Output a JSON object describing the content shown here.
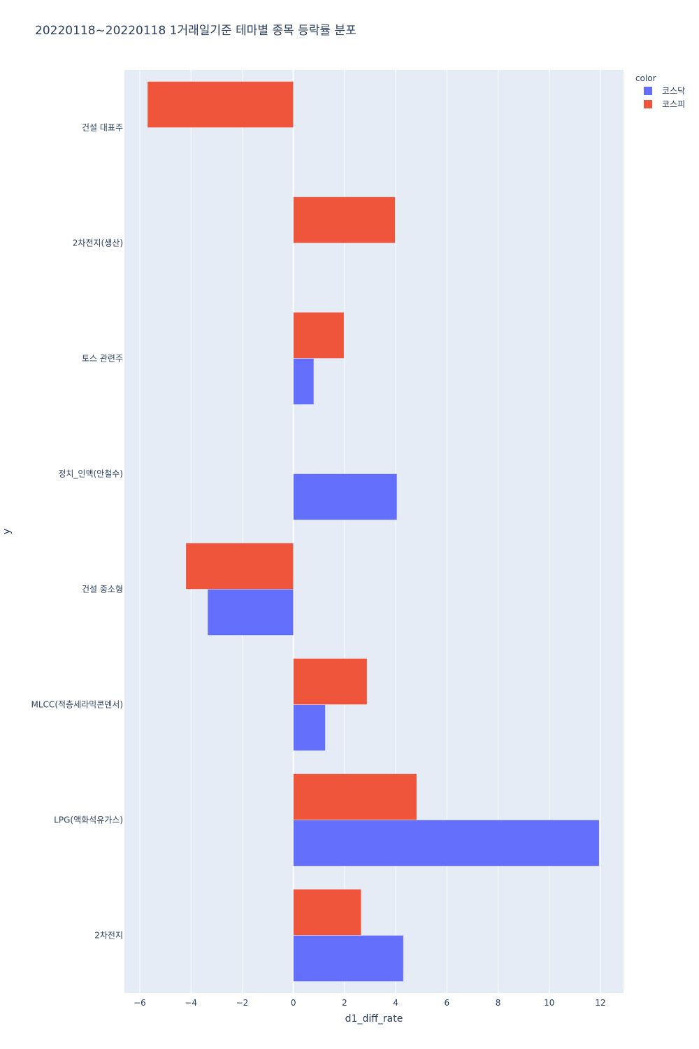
{
  "chart_data": {
    "type": "bar",
    "orientation": "horizontal",
    "barmode": "group",
    "title": "20220118~20220118 1거래일기준 테마별 종목 등락률 분포",
    "xlabel": "d1_diff_rate",
    "ylabel": "y",
    "xlim": [
      -6.6,
      12.9
    ],
    "xticks": [
      -6,
      -4,
      -2,
      0,
      2,
      4,
      6,
      8,
      10,
      12
    ],
    "xtick_labels": [
      "−6",
      "−4",
      "−2",
      "0",
      "2",
      "4",
      "6",
      "8",
      "10",
      "12"
    ],
    "grid": true,
    "legend": {
      "title": "color",
      "placement": "top-right"
    },
    "categories": [
      "건설 대표주",
      "2차전지(생산)",
      "토스 관련주",
      "정치_인맥(안철수)",
      "건설 중소형",
      "MLCC(적층세라믹콘덴서)",
      "LPG(액화석유가스)",
      "2차전지"
    ],
    "series": [
      {
        "name": "코스닥",
        "color": "#636efa",
        "values": [
          null,
          null,
          0.8,
          4.05,
          -3.35,
          1.25,
          11.95,
          4.3
        ]
      },
      {
        "name": "코스피",
        "color": "#ef553b",
        "values": [
          -5.7,
          3.98,
          1.98,
          null,
          -4.2,
          2.88,
          4.82,
          2.65
        ]
      }
    ],
    "plot_bgcolor": "#e5ecf6"
  }
}
